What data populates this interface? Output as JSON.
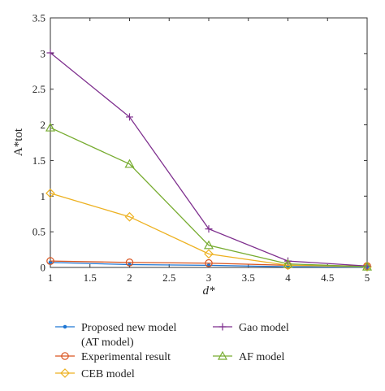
{
  "chart_data": {
    "type": "line",
    "xlabel": "d*",
    "ylabel": "A*tot",
    "xlim": [
      1,
      5
    ],
    "ylim": [
      0,
      3.5
    ],
    "xticks": [
      "1",
      "1.5",
      "2",
      "2.5",
      "3",
      "3.5",
      "4",
      "4.5",
      "5"
    ],
    "yticks": [
      "0",
      "0.5",
      "1",
      "1.5",
      "2",
      "2.5",
      "3",
      "3.5"
    ],
    "grid": false,
    "legend_position": "below",
    "x": [
      1,
      2,
      3,
      4,
      5
    ],
    "series": [
      {
        "name": "Proposed new model (AT model)",
        "legend_lines": [
          "Proposed new model",
          "(AT model)"
        ],
        "values": [
          0.07,
          0.04,
          0.03,
          0.01,
          0.005
        ],
        "color": "#1f77d4",
        "marker": "dot"
      },
      {
        "name": "Experimental result",
        "legend_lines": [
          "Experimental result"
        ],
        "values": [
          0.09,
          0.07,
          0.06,
          0.03,
          0.02
        ],
        "color": "#d9531e",
        "marker": "circle"
      },
      {
        "name": "CEB model",
        "legend_lines": [
          "CEB model"
        ],
        "values": [
          1.04,
          0.71,
          0.19,
          0.03,
          0.01
        ],
        "color": "#edb120",
        "marker": "diamond"
      },
      {
        "name": "Gao model",
        "legend_lines": [
          "Gao model"
        ],
        "values": [
          3.01,
          2.11,
          0.54,
          0.09,
          0.02
        ],
        "color": "#7e2f8e",
        "marker": "plus"
      },
      {
        "name": "AF model",
        "legend_lines": [
          "AF model"
        ],
        "values": [
          1.96,
          1.45,
          0.31,
          0.05,
          0.01
        ],
        "color": "#77ac30",
        "marker": "triangle"
      }
    ]
  }
}
